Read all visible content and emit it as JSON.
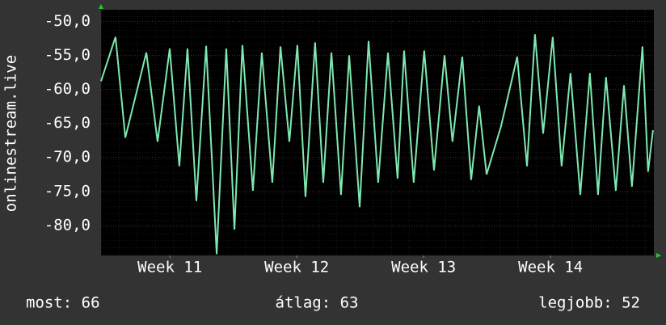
{
  "chart_data": {
    "type": "line",
    "y_label": "onlinestream.live",
    "x": [
      0,
      0.8,
      1.34,
      2.5,
      3.12,
      3.79,
      4.32,
      4.77,
      5.26,
      5.8,
      6.38,
      6.91,
      7.36,
      7.8,
      8.38,
      8.87,
      9.45,
      9.9,
      10.39,
      10.83,
      11.28,
      11.81,
      12.26,
      12.71,
      13.24,
      13.69,
      14.27,
      14.76,
      15.29,
      15.83,
      16.36,
      16.72,
      17.25,
      17.83,
      18.37,
      18.95,
      19.39,
      19.93,
      20.42,
      20.86,
      21.27,
      22.07,
      22.96,
      23.5,
      23.94,
      24.39,
      24.92,
      25.41,
      25.9,
      26.44,
      26.97,
      27.42,
      27.86,
      28.4,
      28.85,
      29.29,
      29.87,
      30.18,
      30.45
    ],
    "series": [
      {
        "name": "onlinestream.live",
        "color": "#7ee8b0",
        "values": [
          -58.8,
          -52.3,
          -67.1,
          -54.6,
          -67.7,
          -54.0,
          -71.3,
          -54.0,
          -76.4,
          -53.6,
          -84.2,
          -54.0,
          -80.6,
          -53.5,
          -74.9,
          -54.6,
          -73.7,
          -53.7,
          -67.7,
          -53.5,
          -75.8,
          -53.1,
          -73.7,
          -54.6,
          -75.5,
          -55.0,
          -77.3,
          -52.9,
          -73.7,
          -54.6,
          -73.1,
          -54.3,
          -73.7,
          -54.3,
          -71.9,
          -55.0,
          -67.7,
          -55.2,
          -73.3,
          -62.4,
          -72.5,
          -65.4,
          -55.2,
          -71.3,
          -51.9,
          -66.5,
          -52.3,
          -71.3,
          -57.6,
          -75.5,
          -57.6,
          -75.5,
          -58.2,
          -74.9,
          -59.4,
          -74.3,
          -53.7,
          -72.1,
          -66.0
        ]
      }
    ],
    "xlim": [
      0,
      30.5
    ],
    "xticks": [
      {
        "value": 3.8,
        "label": "Week 11"
      },
      {
        "value": 10.8,
        "label": "Week 12"
      },
      {
        "value": 17.8,
        "label": "Week 13"
      },
      {
        "value": 24.8,
        "label": "Week 14"
      }
    ],
    "ylim": [
      -84.4,
      -48.3
    ],
    "yticks": [
      {
        "value": -50,
        "label": "-50,0"
      },
      {
        "value": -55,
        "label": "-55,0"
      },
      {
        "value": -60,
        "label": "-60,0"
      },
      {
        "value": -65,
        "label": "-65,0"
      },
      {
        "value": -70,
        "label": "-70,0"
      },
      {
        "value": -75,
        "label": "-75,0"
      },
      {
        "value": -80,
        "label": "-80,0"
      }
    ],
    "grid": true,
    "stats": [
      "most: 66",
      "átlag: 63",
      "legjobb: 52"
    ]
  }
}
